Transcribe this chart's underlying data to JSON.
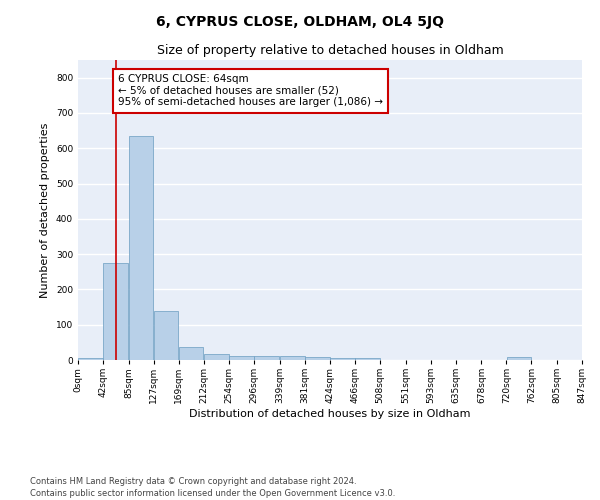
{
  "title": "6, CYPRUS CLOSE, OLDHAM, OL4 5JQ",
  "subtitle": "Size of property relative to detached houses in Oldham",
  "xlabel": "Distribution of detached houses by size in Oldham",
  "ylabel": "Number of detached properties",
  "bar_color": "#b8d0e8",
  "bar_edge_color": "#6a9cc0",
  "background_color": "#e8eef8",
  "grid_color": "#ffffff",
  "annotation_line1": "6 CYPRUS CLOSE: 64sqm",
  "annotation_line2": "← 5% of detached houses are smaller (52)",
  "annotation_line3": "95% of semi-detached houses are larger (1,086) →",
  "annotation_box_color": "#cc0000",
  "property_line_color": "#cc0000",
  "property_value": 64,
  "footer": "Contains HM Land Registry data © Crown copyright and database right 2024.\nContains public sector information licensed under the Open Government Licence v3.0.",
  "bin_edges": [
    0,
    42,
    85,
    127,
    169,
    212,
    254,
    296,
    339,
    381,
    424,
    466,
    508,
    551,
    593,
    635,
    678,
    720,
    762,
    805,
    847
  ],
  "bar_heights": [
    5,
    275,
    635,
    140,
    38,
    18,
    12,
    10,
    10,
    9,
    5,
    5,
    0,
    0,
    0,
    0,
    0,
    8,
    0,
    0
  ],
  "ylim": [
    0,
    850
  ],
  "yticks": [
    0,
    100,
    200,
    300,
    400,
    500,
    600,
    700,
    800
  ],
  "title_fontsize": 10,
  "subtitle_fontsize": 9,
  "axis_label_fontsize": 8,
  "tick_fontsize": 6.5,
  "footer_fontsize": 6,
  "annotation_fontsize": 7.5
}
